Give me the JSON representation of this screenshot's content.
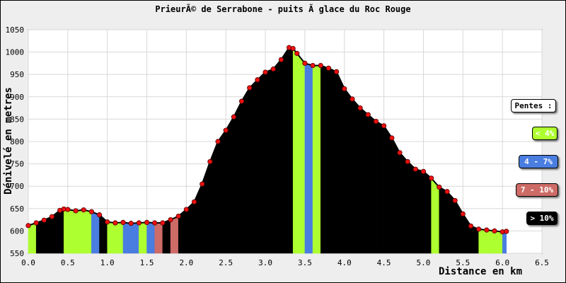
{
  "chart_data": {
    "type": "area",
    "title": "PrieurÃ© de Serrabone - puits Ã  glace du Roc Rouge",
    "xlabel": "Distance en km",
    "ylabel": "Dénivelé en metres",
    "xlim": [
      0,
      6.5
    ],
    "ylim": [
      550,
      1050
    ],
    "xticks": [
      "0.0",
      "0.5",
      "1.0",
      "1.5",
      "2.0",
      "2.5",
      "3.0",
      "3.5",
      "4.0",
      "4.5",
      "5.0",
      "5.5",
      "6.0",
      "6.5"
    ],
    "yticks": [
      "550",
      "600",
      "650",
      "700",
      "750",
      "800",
      "850",
      "900",
      "950",
      "1000",
      "1050"
    ],
    "grid": true,
    "legend_title": "Pentes :",
    "legend": [
      {
        "label": "< 4%",
        "color": "#adff2f"
      },
      {
        "label": "4 - 7%",
        "color": "#4a7de0"
      },
      {
        "label": "7 - 10%",
        "color": "#cd6b66"
      },
      {
        "label": "> 10%",
        "color": "#000000"
      }
    ],
    "x": [
      0.0,
      0.1,
      0.2,
      0.3,
      0.4,
      0.45,
      0.5,
      0.6,
      0.7,
      0.8,
      0.9,
      1.0,
      1.1,
      1.2,
      1.3,
      1.4,
      1.5,
      1.6,
      1.7,
      1.8,
      1.9,
      2.0,
      2.1,
      2.2,
      2.3,
      2.4,
      2.5,
      2.6,
      2.7,
      2.8,
      2.9,
      3.0,
      3.1,
      3.2,
      3.3,
      3.35,
      3.4,
      3.5,
      3.6,
      3.7,
      3.8,
      3.9,
      4.0,
      4.1,
      4.2,
      4.3,
      4.4,
      4.5,
      4.6,
      4.7,
      4.8,
      4.9,
      5.0,
      5.1,
      5.2,
      5.3,
      5.4,
      5.5,
      5.6,
      5.7,
      5.8,
      5.9,
      6.0,
      6.05
    ],
    "y": [
      612,
      618,
      624,
      632,
      646,
      649,
      648,
      645,
      647,
      643,
      636,
      620,
      618,
      619,
      617,
      618,
      619,
      618,
      618,
      625,
      633,
      648,
      665,
      705,
      755,
      800,
      825,
      855,
      890,
      920,
      938,
      955,
      962,
      983,
      1010,
      1008,
      997,
      975,
      970,
      970,
      964,
      956,
      918,
      895,
      875,
      860,
      845,
      835,
      808,
      775,
      755,
      738,
      733,
      718,
      698,
      688,
      668,
      638,
      611,
      604,
      602,
      600,
      598,
      599
    ],
    "slope_classes": [
      0,
      3,
      3,
      3,
      3,
      0,
      0,
      0,
      0,
      1,
      3,
      0,
      0,
      1,
      1,
      0,
      1,
      2,
      3,
      2,
      3,
      3,
      3,
      3,
      3,
      3,
      3,
      3,
      3,
      3,
      3,
      3,
      3,
      3,
      3,
      0,
      0,
      1,
      0,
      3,
      3,
      3,
      3,
      3,
      3,
      3,
      3,
      3,
      3,
      3,
      3,
      3,
      3,
      0,
      3,
      3,
      3,
      3,
      3,
      0,
      0,
      0,
      1
    ]
  }
}
